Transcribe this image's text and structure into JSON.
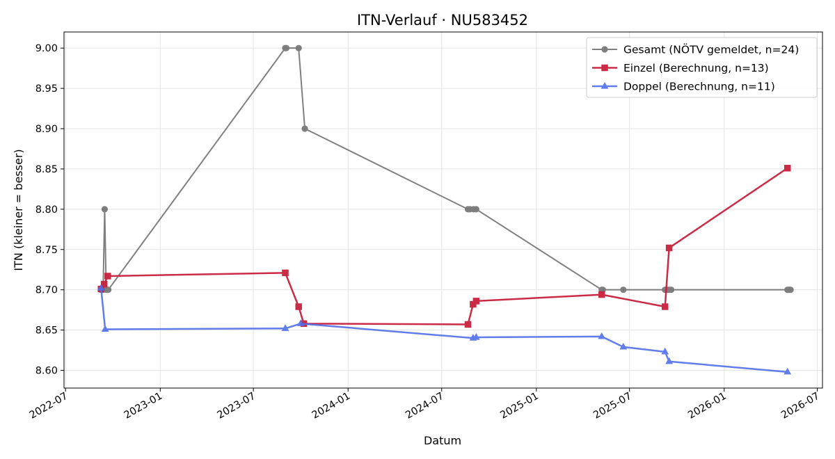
{
  "chart_data": {
    "type": "line",
    "title": "ITN-Verlauf · NU583452",
    "xlabel": "Datum",
    "ylabel": "ITN  (kleiner = besser)",
    "x_axis_type": "date",
    "xlim": [
      "2022-06-28",
      "2026-07-11"
    ],
    "ylim": [
      8.578,
      9.02
    ],
    "grid": true,
    "legend_position": "top-right",
    "x_ticks": [
      "2022-07-01",
      "2023-01-01",
      "2023-07-01",
      "2024-01-01",
      "2024-07-01",
      "2025-01-01",
      "2025-07-01",
      "2026-01-01",
      "2026-07-01"
    ],
    "x_tick_labels": [
      "2022-07",
      "2023-01",
      "2023-07",
      "2024-01",
      "2024-07",
      "2025-01",
      "2025-07",
      "2026-01",
      "2026-07"
    ],
    "y_ticks": [
      8.6,
      8.65,
      8.7,
      8.75,
      8.8,
      8.85,
      8.9,
      8.95,
      9.0
    ],
    "y_tick_labels": [
      "8.60",
      "8.65",
      "8.70",
      "8.75",
      "8.80",
      "8.85",
      "8.90",
      "8.95",
      "9.00"
    ],
    "series": [
      {
        "name": "Gesamt (NÖTV gemeldet, n=24)",
        "color": "#555555",
        "marker": "circle",
        "points": [
          [
            "2022-09-08",
            8.7
          ],
          [
            "2022-09-12",
            8.7
          ],
          [
            "2022-09-15",
            8.8
          ],
          [
            "2022-09-18",
            8.7
          ],
          [
            "2022-09-22",
            8.7
          ],
          [
            "2023-09-01",
            9.0
          ],
          [
            "2023-09-03",
            9.0
          ],
          [
            "2023-09-27",
            9.0
          ],
          [
            "2023-10-09",
            8.9
          ],
          [
            "2024-08-21",
            8.8
          ],
          [
            "2024-08-25",
            8.8
          ],
          [
            "2024-09-01",
            8.8
          ],
          [
            "2024-09-06",
            8.8
          ],
          [
            "2025-05-08",
            8.7
          ],
          [
            "2025-05-10",
            8.7
          ],
          [
            "2025-06-19",
            8.7
          ],
          [
            "2025-09-08",
            8.7
          ],
          [
            "2025-09-12",
            8.7
          ],
          [
            "2025-09-16",
            8.7
          ],
          [
            "2025-09-20",
            8.7
          ],
          [
            "2026-05-04",
            8.7
          ],
          [
            "2026-05-06",
            8.7
          ],
          [
            "2026-05-08",
            8.7
          ],
          [
            "2026-05-10",
            8.7
          ]
        ]
      },
      {
        "name": "Einzel (Berechnung, n=13)",
        "color": "#c8203c",
        "marker": "square",
        "points": [
          [
            "2022-09-08",
            8.701
          ],
          [
            "2022-09-14",
            8.707
          ],
          [
            "2022-09-21",
            8.717
          ],
          [
            "2023-09-01",
            8.721
          ],
          [
            "2023-09-27",
            8.679
          ],
          [
            "2023-10-07",
            8.658
          ],
          [
            "2024-08-21",
            8.657
          ],
          [
            "2024-08-31",
            8.682
          ],
          [
            "2024-09-06",
            8.686
          ],
          [
            "2025-05-08",
            8.694
          ],
          [
            "2025-09-08",
            8.679
          ],
          [
            "2025-09-16",
            8.752
          ],
          [
            "2026-05-04",
            8.851
          ]
        ]
      },
      {
        "name": "Doppel (Berechnung, n=11)",
        "color": "#4f6fe8",
        "marker": "triangle",
        "points": [
          [
            "2022-09-08",
            8.702
          ],
          [
            "2022-09-16",
            8.651
          ],
          [
            "2023-09-01",
            8.652
          ],
          [
            "2023-10-01",
            8.658
          ],
          [
            "2024-08-31",
            8.64
          ],
          [
            "2024-09-06",
            8.641
          ],
          [
            "2025-05-08",
            8.642
          ],
          [
            "2025-06-19",
            8.629
          ],
          [
            "2025-09-08",
            8.623
          ],
          [
            "2025-09-16",
            8.611
          ],
          [
            "2026-05-04",
            8.598
          ]
        ]
      }
    ]
  }
}
